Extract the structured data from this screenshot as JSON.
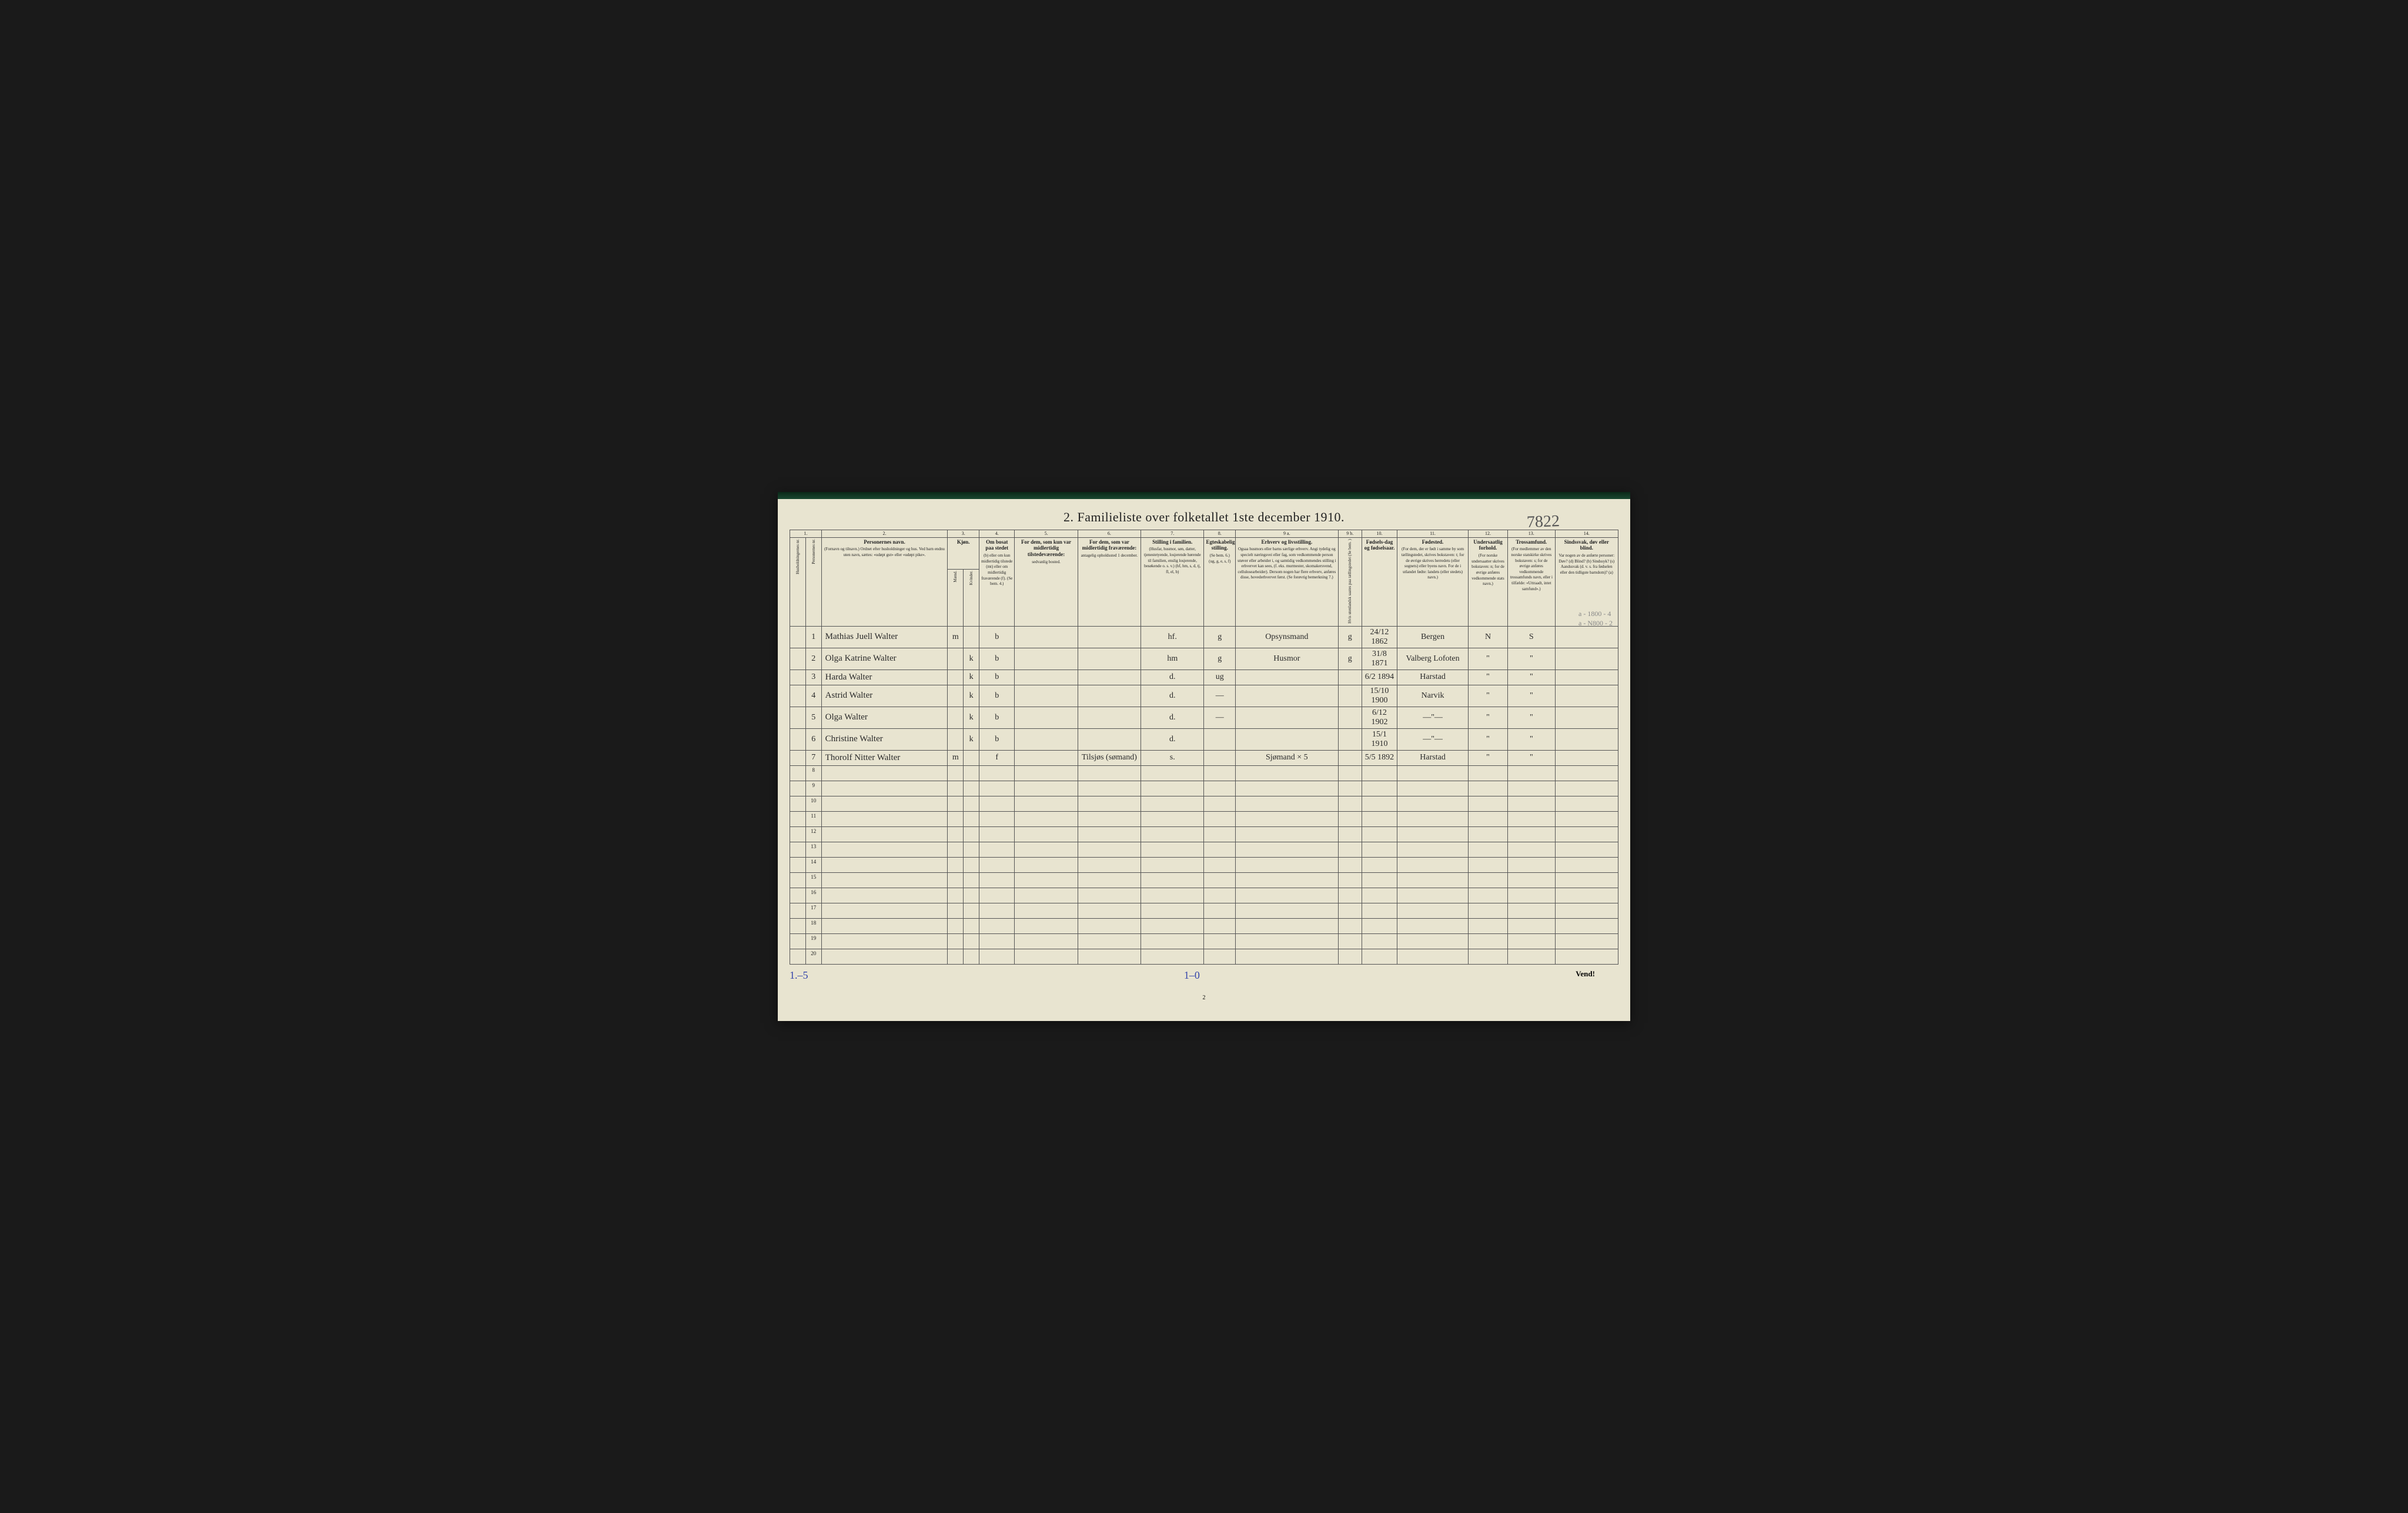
{
  "title": "2.  Familieliste over folketallet 1ste december 1910.",
  "handwritten_top_right": "7822",
  "column_numbers": [
    "1.",
    "",
    "2.",
    "3.",
    "4.",
    "5.",
    "6.",
    "7.",
    "8.",
    "9 a.",
    "9 b.",
    "10.",
    "11.",
    "12.",
    "13.",
    "14."
  ],
  "headers": {
    "col1": {
      "main": "Husholdningernes nr."
    },
    "col1b": {
      "main": "Personernes nr."
    },
    "col2": {
      "main": "Personernes navn.",
      "sub": "(Fornavn og tilnavn.)\nOrdnet efter husholdninger og hus.\nVed barn endnu uten navn, sættes: «udøpt gut» eller «udøpt pike»."
    },
    "col3": {
      "main": "Kjøn.",
      "sub_m": "Mænd.",
      "sub_k": "Kvinder.",
      "mk": "m.  k."
    },
    "col4": {
      "main": "Om bosat paa stedet",
      "sub": "(b) eller om kun midlertidig tilstede (mt) eller om midlertidig fraværende (f). (Se bem. 4.)"
    },
    "col5": {
      "main": "For dem, som kun var midlertidig tilstedeværende:",
      "sub": "sedvanlig bosted."
    },
    "col6": {
      "main": "For dem, som var midlertidig fraværende:",
      "sub": "antagelig opholdssted 1 december."
    },
    "col7": {
      "main": "Stilling i familien.",
      "sub": "(Husfar, husmor, søn, datter, tjenestetyende, losjerende hørende til familien, enslig losjerende, besøkende o. s. v.)\n(hf, hm, s, d, tj, fl, el, b)"
    },
    "col8": {
      "main": "Egteskabelig stilling.",
      "sub": "(Se bem. 6.)\n(ug, g, e, s, f)"
    },
    "col9a": {
      "main": "Erhverv og livsstilling.",
      "sub": "Ogsaa husmors eller barns særlige erhverv. Angi tydelig og specielt næringsvei eller fag, som vedkommende person utøver eller arbeider i, og samtidig vedkommendes stilling i erhvervet kan sees, (f. eks. murmester, skomakersvend, cellulosearbeider). Dersom nogen har flere erhverv, anføres disse, hovederhvervet først.\n(Se forøvrig bemerkning 7.)"
    },
    "col9b": {
      "main": "Hvis utenlandsk saates paa tællingstedet (Se bem. )"
    },
    "col10": {
      "main": "Fødsels-dag og fødselsaar."
    },
    "col11": {
      "main": "Fødested.",
      "sub": "(For dem, der er født i samme by som tællingstedet, skrives bokstaven: t; for de øvrige skrives herredets (eller sognets) eller byens navn. For de i utlandet fødte: landets (eller stedets) navn.)"
    },
    "col12": {
      "main": "Undersaatlig forhold.",
      "sub": "(For norske undersaatter skrives bokstaven: n; for de øvrige anføres vedkommende stats navn.)"
    },
    "col13": {
      "main": "Trossamfund.",
      "sub": "(For medlemmer av den norske statskirke skrives bokstaven: s; for de øvrige anføres vedkommende trossamfunds navn, eller i tilfælde: «Uttraadt, intet samfund».)"
    },
    "col14": {
      "main": "Sindssvak, døv eller blind.",
      "sub": "Var nogen av de anførte personer:\nDøv? (d)\nBlind? (b)\nSindssyk? (s)\nAandssvak (d. v. s. fra fødselen eller den tidligste barndom)? (a)"
    }
  },
  "rows": [
    {
      "num": "1",
      "name": "Mathias Juell Walter",
      "sex_m": "m",
      "sex_k": "",
      "b": "b",
      "col5": "",
      "col6": "",
      "stilling": "hf.",
      "egte": "g",
      "erhverv": "Opsynsmand",
      "col9b": "g",
      "fodsel": "24/12 1862",
      "fodested": "Bergen",
      "under": "N",
      "tros": "S",
      "sind": ""
    },
    {
      "num": "2",
      "name": "Olga Katrine Walter",
      "sex_m": "",
      "sex_k": "k",
      "b": "b",
      "col5": "",
      "col6": "",
      "stilling": "hm",
      "egte": "g",
      "erhverv": "Husmor",
      "col9b": "g",
      "fodsel": "31/8 1871",
      "fodested": "Valberg Lofoten",
      "under": "\"",
      "tros": "\"",
      "sind": ""
    },
    {
      "num": "3",
      "name": "Harda Walter",
      "sex_m": "",
      "sex_k": "k",
      "b": "b",
      "col5": "",
      "col6": "",
      "stilling": "d.",
      "egte": "ug",
      "erhverv": "",
      "col9b": "",
      "fodsel": "6/2 1894",
      "fodested": "Harstad",
      "under": "\"",
      "tros": "\"",
      "sind": ""
    },
    {
      "num": "4",
      "name": "Astrid Walter",
      "sex_m": "",
      "sex_k": "k",
      "b": "b",
      "col5": "",
      "col6": "",
      "stilling": "d.",
      "egte": "—",
      "erhverv": "",
      "col9b": "",
      "fodsel": "15/10 1900",
      "fodested": "Narvik",
      "under": "\"",
      "tros": "\"",
      "sind": ""
    },
    {
      "num": "5",
      "name": "Olga Walter",
      "sex_m": "",
      "sex_k": "k",
      "b": "b",
      "col5": "",
      "col6": "",
      "stilling": "d.",
      "egte": "—",
      "erhverv": "",
      "col9b": "",
      "fodsel": "6/12 1902",
      "fodested": "—\"—",
      "under": "\"",
      "tros": "\"",
      "sind": ""
    },
    {
      "num": "6",
      "name": "Christine Walter",
      "sex_m": "",
      "sex_k": "k",
      "b": "b",
      "col5": "",
      "col6": "",
      "stilling": "d.",
      "egte": "",
      "erhverv": "",
      "col9b": "",
      "fodsel": "15/1 1910",
      "fodested": "—\"—",
      "under": "\"",
      "tros": "\"",
      "sind": ""
    },
    {
      "num": "7",
      "name": "Thorolf Nitter Walter",
      "sex_m": "m",
      "sex_k": "",
      "b": "f",
      "col5": "",
      "col6": "Tilsjøs (sømand)",
      "stilling": "s.",
      "egte": "",
      "erhverv": "Sjømand × 5",
      "col9b": "",
      "fodsel": "5/5 1892",
      "fodested": "Harstad",
      "under": "\"",
      "tros": "\"",
      "sind": ""
    }
  ],
  "empty_row_numbers": [
    "8",
    "9",
    "10",
    "11",
    "12",
    "13",
    "14",
    "15",
    "16",
    "17",
    "18",
    "19",
    "20"
  ],
  "pencil_notes": [
    "a - 1800 - 4",
    "a - N800 - 2"
  ],
  "footer": {
    "left": "1.–5",
    "mid": "1–0",
    "page_num": "2",
    "right": "Vend!"
  },
  "colors": {
    "paper": "#e8e4d0",
    "ink": "#222222",
    "border": "#555555",
    "handwriting": "#2a2a2a",
    "pencil": "#888888",
    "blue_ink": "#3344aa",
    "background": "#1a1a1a"
  },
  "column_widths_pct": [
    2,
    2,
    16,
    2,
    2,
    4.5,
    8,
    8,
    8,
    4,
    13,
    3,
    4.5,
    9,
    5,
    6,
    8
  ]
}
